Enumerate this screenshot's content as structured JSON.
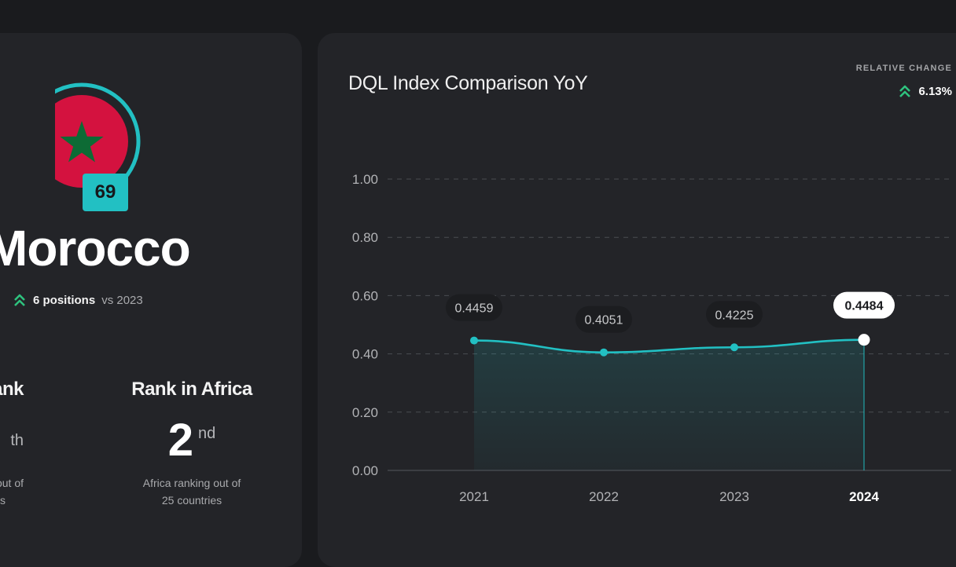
{
  "country": {
    "name": "Morocco",
    "global_rank_badge": "69",
    "flag_colors": {
      "red": "#d4123f",
      "green": "#0d6b35",
      "ring": "#22c0c3"
    },
    "change": {
      "icon": "double-chevron-up-icon",
      "bold": "6 positions",
      "rest": "vs 2023"
    }
  },
  "stats": {
    "global": {
      "title_visible": "ank",
      "suffix_visible": "th",
      "desc_line1_visible": "out of",
      "desc_line2_visible": "s"
    },
    "africa": {
      "title": "Rank in Africa",
      "value": "2",
      "suffix": "nd",
      "desc_line1": "Africa ranking out of",
      "desc_line2": "25 countries"
    }
  },
  "relative_change": {
    "label": "RELATIVE CHANGE",
    "value": "6.13%",
    "icon": "double-chevron-up-icon"
  },
  "colors": {
    "accent": "#22c0c3",
    "positive": "#2ec27e",
    "panel": "#232428",
    "background": "#1a1b1e"
  },
  "chart_data": {
    "type": "area",
    "title": "DQL Index Comparison YoY",
    "categories": [
      "2021",
      "2022",
      "2023",
      "2024"
    ],
    "values": [
      0.4459,
      0.4051,
      0.4225,
      0.4484
    ],
    "data_labels": [
      "0.4459",
      "0.4051",
      "0.4225",
      "0.4484"
    ],
    "highlighted": "2024",
    "yticks": [
      "0.00",
      "0.20",
      "0.40",
      "0.60",
      "0.80",
      "1.00"
    ],
    "ylim": [
      0,
      1
    ],
    "xlabel": "",
    "ylabel": "",
    "grid": true,
    "legend": "none"
  }
}
